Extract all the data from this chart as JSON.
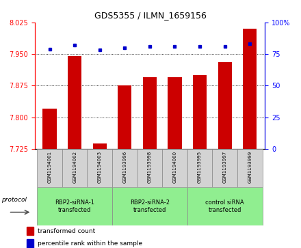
{
  "title": "GDS5355 / ILMN_1659156",
  "samples": [
    "GSM1194001",
    "GSM1194002",
    "GSM1194003",
    "GSM1193996",
    "GSM1193998",
    "GSM1194000",
    "GSM1193995",
    "GSM1193997",
    "GSM1193999"
  ],
  "transformed_counts": [
    7.82,
    7.945,
    7.738,
    7.875,
    7.895,
    7.895,
    7.9,
    7.93,
    8.01
  ],
  "percentile_ranks": [
    79,
    82,
    78,
    80,
    81,
    81,
    81,
    81,
    83
  ],
  "groups": [
    {
      "label": "RBP2-siRNA-1\ntransfected",
      "indices": [
        0,
        1,
        2
      ],
      "color": "#90EE90"
    },
    {
      "label": "RBP2-siRNA-2\ntransfected",
      "indices": [
        3,
        4,
        5
      ],
      "color": "#90EE90"
    },
    {
      "label": "control siRNA\ntransfected",
      "indices": [
        6,
        7,
        8
      ],
      "color": "#90EE90"
    }
  ],
  "ylim_left": [
    7.725,
    8.025
  ],
  "ylim_right": [
    0,
    100
  ],
  "yticks_left": [
    7.725,
    7.8,
    7.875,
    7.95,
    8.025
  ],
  "yticks_right": [
    0,
    25,
    50,
    75,
    100
  ],
  "bar_color": "#CC0000",
  "dot_color": "#0000CC",
  "bar_width": 0.55,
  "protocol_label": "protocol",
  "legend_items": [
    {
      "color": "#CC0000",
      "label": "transformed count"
    },
    {
      "color": "#0000CC",
      "label": "percentile rank within the sample"
    }
  ]
}
